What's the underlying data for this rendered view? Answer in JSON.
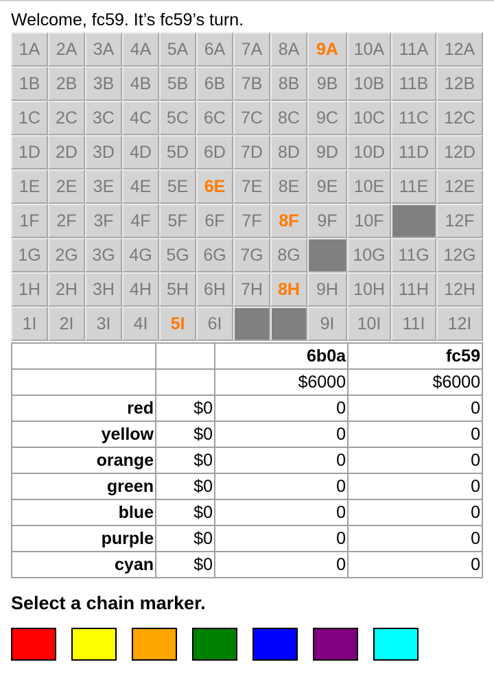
{
  "welcome": "Welcome, fc59. It’s fc59’s turn.",
  "board": {
    "columns": [
      "1",
      "2",
      "3",
      "4",
      "5",
      "6",
      "7",
      "8",
      "9",
      "10",
      "11",
      "12"
    ],
    "rows": [
      "A",
      "B",
      "C",
      "D",
      "E",
      "F",
      "G",
      "H",
      "I"
    ],
    "highlighted": [
      "9A",
      "6E",
      "8F",
      "8H",
      "5I"
    ],
    "placed": [
      "11F",
      "9G",
      "7I",
      "8I"
    ],
    "highlight_color": "#ff7a00",
    "placed_color": "#808080",
    "tile_color": "#d3d3d3"
  },
  "stats": {
    "players": [
      {
        "name": "6b0a",
        "cash": "$6000"
      },
      {
        "name": "fc59",
        "cash": "$6000"
      }
    ],
    "chains": [
      {
        "name": "red",
        "price": "$0",
        "holdings": [
          "0",
          "0"
        ]
      },
      {
        "name": "yellow",
        "price": "$0",
        "holdings": [
          "0",
          "0"
        ]
      },
      {
        "name": "orange",
        "price": "$0",
        "holdings": [
          "0",
          "0"
        ]
      },
      {
        "name": "green",
        "price": "$0",
        "holdings": [
          "0",
          "0"
        ]
      },
      {
        "name": "blue",
        "price": "$0",
        "holdings": [
          "0",
          "0"
        ]
      },
      {
        "name": "purple",
        "price": "$0",
        "holdings": [
          "0",
          "0"
        ]
      },
      {
        "name": "cyan",
        "price": "$0",
        "holdings": [
          "0",
          "0"
        ]
      }
    ]
  },
  "prompt": "Select a chain marker.",
  "markers": [
    {
      "name": "red",
      "color": "#ff0000"
    },
    {
      "name": "yellow",
      "color": "#ffff00"
    },
    {
      "name": "orange",
      "color": "#ffa500"
    },
    {
      "name": "green",
      "color": "#008000"
    },
    {
      "name": "blue",
      "color": "#0000ff"
    },
    {
      "name": "purple",
      "color": "#800080"
    },
    {
      "name": "cyan",
      "color": "#00ffff"
    }
  ]
}
